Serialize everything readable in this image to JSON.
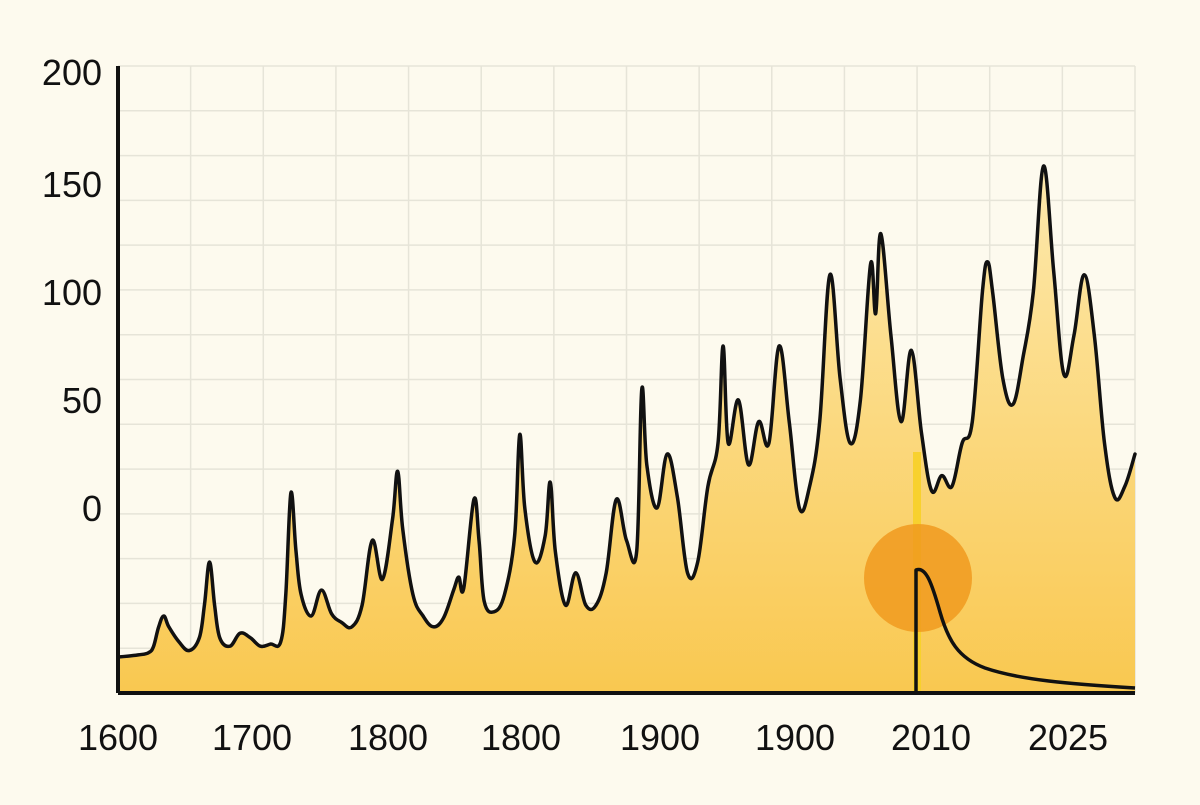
{
  "chart_data": {
    "type": "area",
    "title": "",
    "xlabel": "",
    "ylabel": "",
    "grid": true,
    "legend": "none",
    "colors": {
      "background": "#fdfaee",
      "grid": "#e6e4d8",
      "line": "#111111",
      "fill_top": "#fde9ad",
      "fill_bottom": "#f9c850",
      "highlight_circle": "#f09a1e",
      "highlight_bar": "#f8d12a"
    },
    "y_ticks": [
      {
        "label": "200",
        "value": 200
      },
      {
        "label": "150",
        "value": 150
      },
      {
        "label": "100",
        "value": 100
      },
      {
        "label": "50",
        "value": 50
      },
      {
        "label": "0",
        "value": 0
      }
    ],
    "x_tick_labels": [
      "1600",
      "1700",
      "1800",
      "1800",
      "1900",
      "1900",
      "2010",
      "2025"
    ],
    "ylim": [
      -90,
      200
    ],
    "series": [
      {
        "values": [
          [
            0.0,
            -69
          ],
          [
            0.02,
            -68
          ],
          [
            0.03,
            -67
          ],
          [
            0.035,
            -64
          ],
          [
            0.04,
            -55
          ],
          [
            0.045,
            -50
          ],
          [
            0.05,
            -55
          ],
          [
            0.06,
            -62
          ],
          [
            0.07,
            -66
          ],
          [
            0.08,
            -60
          ],
          [
            0.085,
            -45
          ],
          [
            0.09,
            -25
          ],
          [
            0.095,
            -45
          ],
          [
            0.1,
            -60
          ],
          [
            0.11,
            -64
          ],
          [
            0.12,
            -58
          ],
          [
            0.13,
            -60
          ],
          [
            0.14,
            -64
          ],
          [
            0.15,
            -63
          ],
          [
            0.16,
            -62
          ],
          [
            0.165,
            -40
          ],
          [
            0.17,
            7
          ],
          [
            0.175,
            -20
          ],
          [
            0.18,
            -40
          ],
          [
            0.19,
            -50
          ],
          [
            0.2,
            -38
          ],
          [
            0.21,
            -49
          ],
          [
            0.22,
            -53
          ],
          [
            0.23,
            -55
          ],
          [
            0.24,
            -45
          ],
          [
            0.25,
            -15
          ],
          [
            0.26,
            -33
          ],
          [
            0.27,
            -5
          ],
          [
            0.275,
            17
          ],
          [
            0.28,
            -10
          ],
          [
            0.29,
            -40
          ],
          [
            0.3,
            -50
          ],
          [
            0.31,
            -55
          ],
          [
            0.32,
            -51
          ],
          [
            0.33,
            -38
          ],
          [
            0.335,
            -32
          ],
          [
            0.34,
            -37
          ],
          [
            0.35,
            4
          ],
          [
            0.355,
            -15
          ],
          [
            0.36,
            -43
          ],
          [
            0.37,
            -48
          ],
          [
            0.38,
            -40
          ],
          [
            0.39,
            -13
          ],
          [
            0.395,
            34
          ],
          [
            0.4,
            0
          ],
          [
            0.41,
            -25
          ],
          [
            0.42,
            -13
          ],
          [
            0.425,
            12
          ],
          [
            0.43,
            -20
          ],
          [
            0.44,
            -45
          ],
          [
            0.45,
            -30
          ],
          [
            0.46,
            -45
          ],
          [
            0.47,
            -45
          ],
          [
            0.48,
            -30
          ],
          [
            0.49,
            4
          ],
          [
            0.5,
            -15
          ],
          [
            0.51,
            -20
          ],
          [
            0.515,
            55
          ],
          [
            0.52,
            20
          ],
          [
            0.53,
            0
          ],
          [
            0.54,
            25
          ],
          [
            0.55,
            5
          ],
          [
            0.56,
            -30
          ],
          [
            0.57,
            -25
          ],
          [
            0.58,
            10
          ],
          [
            0.59,
            30
          ],
          [
            0.595,
            75
          ],
          [
            0.6,
            30
          ],
          [
            0.61,
            50
          ],
          [
            0.62,
            20
          ],
          [
            0.63,
            40
          ],
          [
            0.64,
            30
          ],
          [
            0.65,
            75
          ],
          [
            0.66,
            40
          ],
          [
            0.67,
            0
          ],
          [
            0.68,
            10
          ],
          [
            0.69,
            40
          ],
          [
            0.7,
            108
          ],
          [
            0.71,
            60
          ],
          [
            0.72,
            30
          ],
          [
            0.73,
            50
          ],
          [
            0.74,
            113
          ],
          [
            0.745,
            90
          ],
          [
            0.75,
            127
          ],
          [
            0.76,
            80
          ],
          [
            0.77,
            40
          ],
          [
            0.78,
            73
          ],
          [
            0.79,
            35
          ],
          [
            0.8,
            8
          ],
          [
            0.81,
            15
          ],
          [
            0.82,
            10
          ],
          [
            0.83,
            30
          ],
          [
            0.84,
            40
          ],
          [
            0.85,
            100
          ],
          [
            0.855,
            114
          ],
          [
            0.86,
            100
          ],
          [
            0.87,
            60
          ],
          [
            0.88,
            48
          ],
          [
            0.89,
            70
          ],
          [
            0.9,
            100
          ],
          [
            0.91,
            158
          ],
          [
            0.92,
            110
          ],
          [
            0.93,
            62
          ],
          [
            0.94,
            80
          ],
          [
            0.95,
            108
          ],
          [
            0.96,
            80
          ],
          [
            0.97,
            30
          ],
          [
            0.98,
            5
          ],
          [
            0.99,
            10
          ],
          [
            1.0,
            25
          ]
        ]
      }
    ],
    "annotations": [
      {
        "label": "",
        "type": "highlight-marker"
      }
    ]
  }
}
